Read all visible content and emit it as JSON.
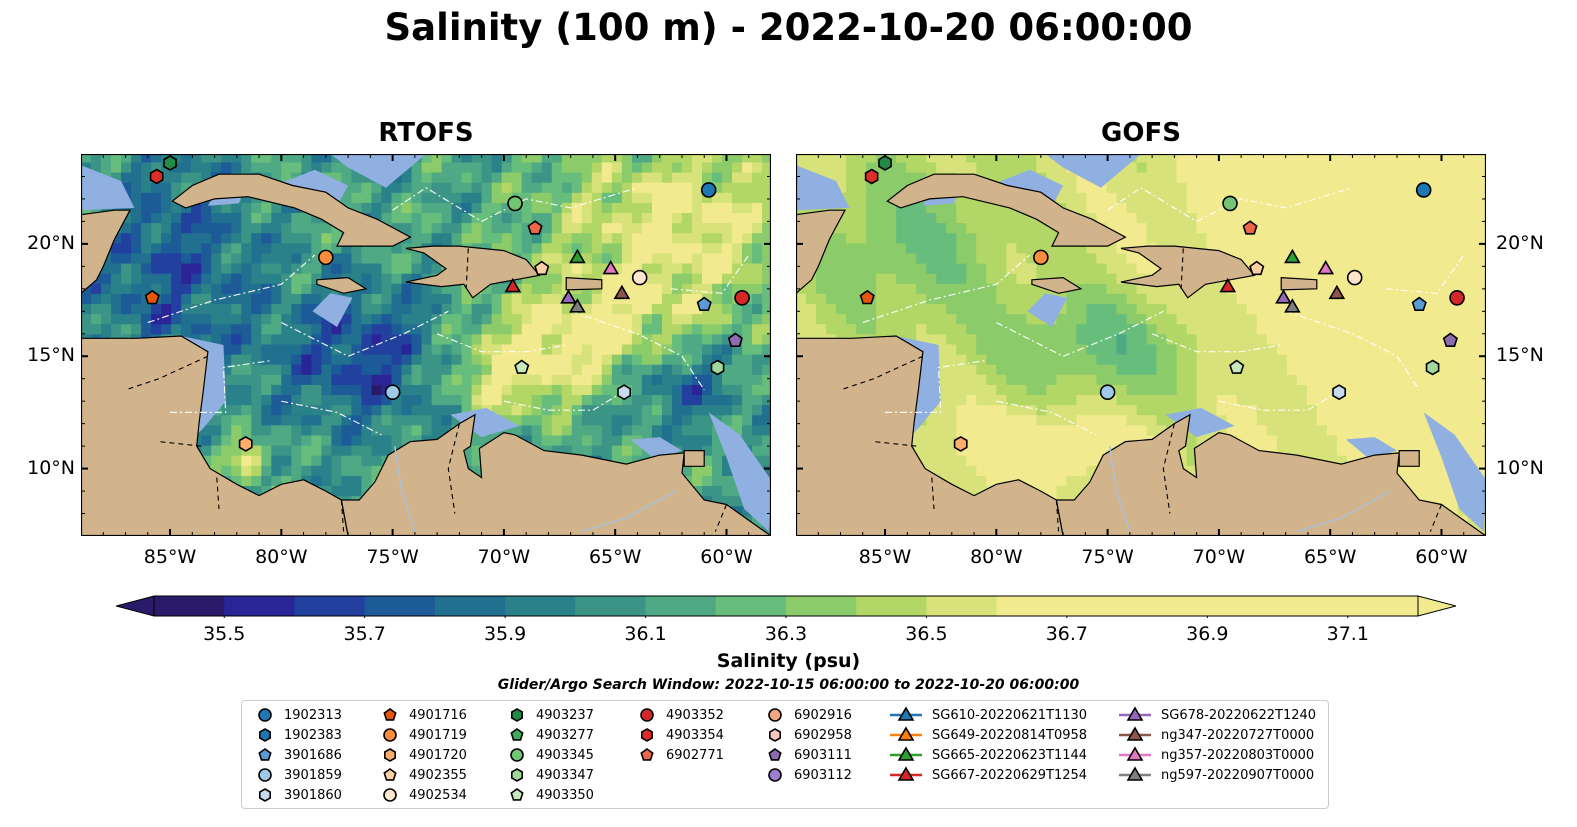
{
  "title": "Salinity (100 m) - 2022-10-20 06:00:00",
  "panels": [
    {
      "title": "RTOFS"
    },
    {
      "title": "GOFS"
    }
  ],
  "map": {
    "lon_range": [
      -89,
      -58
    ],
    "lat_range": [
      7,
      24
    ],
    "lon_ticks": [
      -85,
      -80,
      -75,
      -70,
      -65,
      -60
    ],
    "lon_tick_labels": [
      "85°W",
      "80°W",
      "75°W",
      "70°W",
      "65°W",
      "60°W"
    ],
    "lat_ticks": [
      10,
      15,
      20
    ],
    "lat_tick_labels": [
      "10°N",
      "15°N",
      "20°N"
    ],
    "land_color": "#d2b48c",
    "shelf_color": "#8fb0e0",
    "bathymetry_contour_labels": [
      "-1000",
      "-100"
    ]
  },
  "colorbar": {
    "label": "Salinity (psu)",
    "min": 35.4,
    "max": 37.2,
    "step": 0.1,
    "extend": "both",
    "ticks": [
      35.5,
      35.7,
      35.9,
      36.1,
      36.3,
      36.5,
      36.7,
      36.9,
      37.1
    ],
    "tick_labels": [
      "35.5",
      "35.7",
      "35.9",
      "36.1",
      "36.3",
      "36.5",
      "36.7",
      "36.9",
      "37.1"
    ],
    "colors": [
      "#2a1a6a",
      "#2a2596",
      "#22409e",
      "#1d5a98",
      "#21708f",
      "#2a8189",
      "#3c9486",
      "#4ea984",
      "#67be7c",
      "#8ccb6a",
      "#b3d766",
      "#d7e37a",
      "#f2ea8e"
    ]
  },
  "search_window": "Glider/Argo Search Window: 2022-10-15 06:00:00 to 2022-10-20 06:00:00",
  "legend": [
    {
      "label": "1902313",
      "marker": "circle",
      "color": "#1f77b4"
    },
    {
      "label": "1902383",
      "marker": "hexagon",
      "color": "#1f77b4"
    },
    {
      "label": "3901686",
      "marker": "pentagon",
      "color": "#5b9bd5"
    },
    {
      "label": "3901859",
      "marker": "circle",
      "color": "#9ecae9"
    },
    {
      "label": "3901860",
      "marker": "hexagon",
      "color": "#c6dbef"
    },
    {
      "label": "4901716",
      "marker": "pentagon",
      "color": "#e6550d"
    },
    {
      "label": "4901719",
      "marker": "circle",
      "color": "#fd8d3c"
    },
    {
      "label": "4901720",
      "marker": "hexagon",
      "color": "#fdae6b"
    },
    {
      "label": "4902355",
      "marker": "pentagon",
      "color": "#fdd0a2"
    },
    {
      "label": "4902534",
      "marker": "circle",
      "color": "#fee6ce"
    },
    {
      "label": "4903237",
      "marker": "hexagon",
      "color": "#238b45"
    },
    {
      "label": "4903277",
      "marker": "pentagon",
      "color": "#41ab5d"
    },
    {
      "label": "4903345",
      "marker": "circle",
      "color": "#74c476"
    },
    {
      "label": "4903347",
      "marker": "hexagon",
      "color": "#a1d99b"
    },
    {
      "label": "4903350",
      "marker": "pentagon",
      "color": "#c7e9c0"
    },
    {
      "label": "4903352",
      "marker": "circle",
      "color": "#d62728"
    },
    {
      "label": "4903354",
      "marker": "hexagon",
      "color": "#de2d26"
    },
    {
      "label": "6902771",
      "marker": "pentagon",
      "color": "#ef6548"
    },
    {
      "label": "6902916",
      "marker": "circle",
      "color": "#f4a582"
    },
    {
      "label": "6902958",
      "marker": "hexagon",
      "color": "#fcc5c0"
    },
    {
      "label": "6903111",
      "marker": "pentagon",
      "color": "#8c6bb1"
    },
    {
      "label": "6903112",
      "marker": "circle",
      "color": "#9e7fcf"
    },
    {
      "label": "SG610-20220621T1130",
      "marker": "triangle",
      "color": "#1f77b4"
    },
    {
      "label": "SG649-20220814T0958",
      "marker": "triangle",
      "color": "#ff7f0e"
    },
    {
      "label": "SG665-20220623T1144",
      "marker": "triangle",
      "color": "#2ca02c"
    },
    {
      "label": "SG667-20220629T1254",
      "marker": "triangle",
      "color": "#d62728"
    },
    {
      "label": "SG678-20220622T1240",
      "marker": "triangle",
      "color": "#9467bd"
    },
    {
      "label": "ng347-20220727T0000",
      "marker": "triangle",
      "color": "#8c564b"
    },
    {
      "label": "ng357-20220803T0000",
      "marker": "triangle",
      "color": "#e377c2"
    },
    {
      "label": "ng597-20220907T0000",
      "marker": "triangle",
      "color": "#7f7f7f"
    }
  ],
  "observations": [
    {
      "id": "1902313",
      "lon": -60.8,
      "lat": 22.4
    },
    {
      "id": "4903345",
      "lon": -69.5,
      "lat": 21.8
    },
    {
      "id": "4903237",
      "lon": -85.0,
      "lat": 23.6
    },
    {
      "id": "4903354",
      "lon": -85.6,
      "lat": 23.0
    },
    {
      "id": "6902771",
      "lon": -68.6,
      "lat": 20.7
    },
    {
      "id": "4901719",
      "lon": -78.0,
      "lat": 19.4
    },
    {
      "id": "4902355",
      "lon": -68.3,
      "lat": 18.9
    },
    {
      "id": "4902534",
      "lon": -63.9,
      "lat": 18.5
    },
    {
      "id": "4903352",
      "lon": -59.3,
      "lat": 17.6
    },
    {
      "id": "4901716",
      "lon": -85.8,
      "lat": 17.6
    },
    {
      "id": "3901686",
      "lon": -61.0,
      "lat": 17.3
    },
    {
      "id": "6903111",
      "lon": -59.6,
      "lat": 15.7
    },
    {
      "id": "4903350",
      "lon": -69.2,
      "lat": 14.5
    },
    {
      "id": "4903347",
      "lon": -60.4,
      "lat": 14.5
    },
    {
      "id": "3901859",
      "lon": -75.0,
      "lat": 13.4
    },
    {
      "id": "3901860",
      "lon": -64.6,
      "lat": 13.4
    },
    {
      "id": "4901720",
      "lon": -81.6,
      "lat": 11.1
    },
    {
      "id": "SG665-20220623T1144",
      "lon": -66.7,
      "lat": 19.4
    },
    {
      "id": "ng357-20220803T0000",
      "lon": -65.2,
      "lat": 18.9
    },
    {
      "id": "SG667-20220629T1254",
      "lon": -69.6,
      "lat": 18.1
    },
    {
      "id": "ng347-20220727T0000",
      "lon": -64.7,
      "lat": 17.8
    },
    {
      "id": "SG678-20220622T1240",
      "lon": -67.1,
      "lat": 17.6
    },
    {
      "id": "ng597-20220907T0000",
      "lon": -66.7,
      "lat": 17.2
    }
  ]
}
